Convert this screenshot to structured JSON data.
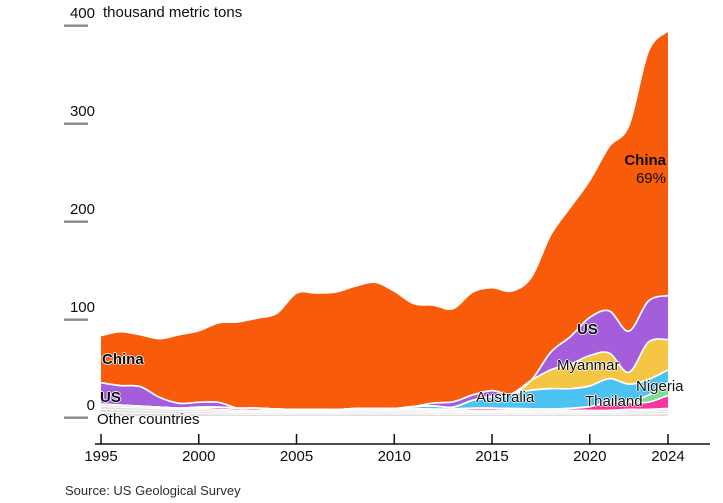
{
  "source": "Source: US Geological Survey",
  "labels": {
    "china_left": "China",
    "us_left": "US",
    "other": "Other countries",
    "australia": "Australia",
    "us_right": "US",
    "myanmar": "Myanmar",
    "thailand": "Thailand",
    "nigeria": "Nigeria",
    "annotation_name": "China",
    "annotation_share": "69%"
  },
  "chart_data": {
    "type": "area",
    "stacked": true,
    "title": "400 thousand metric tons",
    "unit": "thousand metric tons",
    "ylim": [
      0,
      400
    ],
    "yticks": [
      0,
      100,
      200,
      300,
      400
    ],
    "xticks": [
      1995,
      2000,
      2005,
      2010,
      2015,
      2020,
      2024
    ],
    "grid": false,
    "legend": "labels-on-areas",
    "years": [
      1995,
      1996,
      1997,
      1998,
      1999,
      2000,
      2001,
      2002,
      2003,
      2004,
      2005,
      2006,
      2007,
      2008,
      2009,
      2010,
      2011,
      2012,
      2013,
      2014,
      2015,
      2016,
      2017,
      2018,
      2019,
      2020,
      2021,
      2022,
      2023,
      2024
    ],
    "series": [
      {
        "name": "Other countries",
        "color": "#DEDEDE",
        "strands": [
          0.3,
          0.27,
          0.24,
          0.19
        ],
        "values": [
          12,
          11,
          10,
          9,
          8,
          8,
          7,
          6,
          6,
          6,
          6,
          6,
          6,
          7,
          7,
          7,
          7,
          6,
          6,
          6,
          6,
          6,
          6,
          6,
          6,
          6,
          6,
          7,
          7,
          8
        ]
      },
      {
        "name": "Thailand",
        "color": "#F8369B",
        "values": [
          0,
          0,
          0,
          0,
          0,
          1,
          2,
          2,
          2,
          1,
          0.5,
          0.5,
          0.5,
          0.5,
          0.5,
          0.5,
          0.5,
          1,
          1,
          2,
          2,
          1.6,
          1.3,
          1,
          1.9,
          3.6,
          8.2,
          7.1,
          7.1,
          13
        ]
      },
      {
        "name": "Nigeria",
        "color": "#7BDC96",
        "values": [
          0,
          0,
          0,
          0,
          0,
          0,
          0,
          0,
          0,
          0,
          0,
          0,
          0,
          0,
          0,
          0,
          0,
          0,
          0,
          0,
          0,
          0,
          0,
          0,
          0,
          0,
          0,
          0.5,
          7.2,
          13
        ]
      },
      {
        "name": "Australia",
        "color": "#4BC2F1",
        "values": [
          0,
          0,
          0,
          0,
          0,
          0,
          0,
          0,
          0,
          0,
          0,
          0,
          0,
          0,
          0,
          0,
          2.2,
          3.2,
          2,
          8,
          12,
          15,
          19,
          21,
          20,
          21,
          24,
          18,
          16,
          13
        ]
      },
      {
        "name": "Myanmar",
        "color": "#F5C644",
        "values": [
          0,
          0,
          0,
          0,
          0,
          0,
          0,
          0,
          0,
          0,
          0,
          0,
          0,
          0,
          0,
          0,
          0,
          0,
          0,
          0,
          0,
          0,
          10,
          19,
          25,
          31,
          26,
          12,
          38,
          31
        ]
      },
      {
        "name": "US",
        "color": "#A45EDB",
        "values": [
          22,
          20,
          20,
          10,
          5,
          5,
          5,
          0,
          0,
          0,
          0,
          0,
          0,
          0,
          0,
          0,
          0,
          3,
          5.5,
          5.4,
          5.9,
          0,
          0,
          18,
          28,
          39,
          43,
          42,
          42,
          45
        ]
      },
      {
        "name": "China",
        "color": "#F85C0A",
        "values": [
          48,
          55,
          53,
          60,
          70,
          73,
          81,
          88,
          92,
          98,
          119,
          119,
          120,
          125,
          129,
          120,
          105,
          100,
          95,
          105,
          105,
          105,
          105,
          120,
          132,
          140,
          168,
          210,
          255,
          270
        ]
      }
    ],
    "annotation": {
      "series": "China",
      "share_2024": "69%"
    }
  }
}
